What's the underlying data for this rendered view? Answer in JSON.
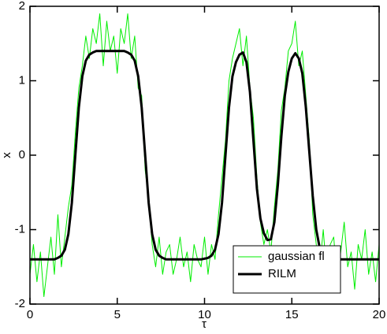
{
  "chart_data": {
    "type": "line",
    "x_label": "τ",
    "y_label": "x",
    "x": [
      0,
      0.2,
      0.4,
      0.6,
      0.8,
      1,
      1.2,
      1.4,
      1.6,
      1.8,
      2,
      2.2,
      2.4,
      2.6,
      2.8,
      3,
      3.2,
      3.4,
      3.6,
      3.8,
      4,
      4.2,
      4.4,
      4.6,
      4.8,
      5,
      5.2,
      5.4,
      5.6,
      5.8,
      6,
      6.2,
      6.4,
      6.6,
      6.8,
      7,
      7.2,
      7.4,
      7.6,
      7.8,
      8,
      8.2,
      8.4,
      8.6,
      8.8,
      9,
      9.2,
      9.4,
      9.6,
      9.8,
      10,
      10.2,
      10.4,
      10.6,
      10.8,
      11,
      11.2,
      11.4,
      11.6,
      11.8,
      12,
      12.2,
      12.4,
      12.6,
      12.8,
      13,
      13.2,
      13.4,
      13.6,
      13.8,
      14,
      14.2,
      14.4,
      14.6,
      14.8,
      15,
      15.2,
      15.4,
      15.6,
      15.8,
      16,
      16.2,
      16.4,
      16.6,
      16.8,
      17,
      17.2,
      17.4,
      17.6,
      17.8,
      18,
      18.2,
      18.4,
      18.6,
      18.8,
      19,
      19.2,
      19.4,
      19.6,
      19.8,
      20
    ],
    "series": [
      {
        "name": "gaussian fl",
        "color": "#00ee00",
        "width": 1,
        "values": [
          -1.6,
          -1.2,
          -1.7,
          -1.3,
          -1.9,
          -1.5,
          -1.1,
          -1.6,
          -0.8,
          -1.5,
          -1.1,
          -0.7,
          -0.4,
          0.3,
          0.9,
          1.2,
          1.6,
          1.3,
          1.7,
          1.5,
          1.9,
          1.2,
          1.8,
          1.4,
          1.6,
          1.1,
          1.7,
          1.5,
          1.9,
          1.3,
          1.6,
          0.9,
          0.8,
          -0.2,
          -0.6,
          -1.2,
          -1.5,
          -1.1,
          -1.6,
          -1.3,
          -1.2,
          -1.6,
          -1.4,
          -1.1,
          -1.5,
          -1.3,
          -1.7,
          -1.2,
          -1.4,
          -1.5,
          -1.1,
          -1.6,
          -1.2,
          -1.4,
          -0.8,
          -0.3,
          0.2,
          1.0,
          1.3,
          1.5,
          1.7,
          1.2,
          1.6,
          0.9,
          0.5,
          -0.3,
          -0.9,
          -1.2,
          -1.0,
          -1.3,
          -0.7,
          -0.2,
          0.6,
          0.9,
          1.4,
          1.5,
          1.8,
          1.2,
          1.4,
          0.8,
          0.2,
          -0.8,
          -1.2,
          -1.5,
          -1.0,
          -1.6,
          -1.2,
          -1.1,
          -1.7,
          -1.3,
          -0.9,
          -1.5,
          -1.3,
          -1.8,
          -1.2,
          -1.4,
          -1.0,
          -1.6,
          -1.3,
          -1.7,
          -1.2
        ]
      },
      {
        "name": "RILM",
        "color": "#000000",
        "width": 3,
        "values": [
          -1.4,
          -1.4,
          -1.4,
          -1.4,
          -1.4,
          -1.4,
          -1.4,
          -1.4,
          -1.38,
          -1.35,
          -1.27,
          -1.06,
          -0.64,
          0,
          0.64,
          1.06,
          1.27,
          1.35,
          1.38,
          1.4,
          1.4,
          1.4,
          1.4,
          1.4,
          1.4,
          1.4,
          1.4,
          1.4,
          1.38,
          1.35,
          1.27,
          1.06,
          0.64,
          0,
          -0.64,
          -1.06,
          -1.27,
          -1.35,
          -1.38,
          -1.4,
          -1.4,
          -1.4,
          -1.4,
          -1.4,
          -1.4,
          -1.4,
          -1.4,
          -1.4,
          -1.4,
          -1.4,
          -1.39,
          -1.38,
          -1.35,
          -1.27,
          -1.06,
          -0.64,
          0,
          0.64,
          1.06,
          1.25,
          1.35,
          1.38,
          1.25,
          0.85,
          0.2,
          -0.45,
          -0.85,
          -1.05,
          -1.14,
          -1.13,
          -0.9,
          -0.4,
          0.25,
          0.8,
          1.12,
          1.3,
          1.37,
          1.3,
          1.1,
          0.65,
          0.05,
          -0.55,
          -1.0,
          -1.25,
          -1.34,
          -1.38,
          -1.4,
          -1.4,
          -1.4,
          -1.4,
          -1.4,
          -1.4,
          -1.4,
          -1.4,
          -1.4,
          -1.4,
          -1.4,
          -1.4,
          -1.4,
          -1.4,
          -1.4
        ]
      }
    ],
    "xlim": [
      0,
      20
    ],
    "xticks": [
      0,
      5,
      10,
      15,
      20
    ],
    "ylim": [
      -2,
      2
    ],
    "yticks": [
      -2,
      -1,
      0,
      1,
      2
    ],
    "grid": false,
    "legend": "lower right"
  }
}
